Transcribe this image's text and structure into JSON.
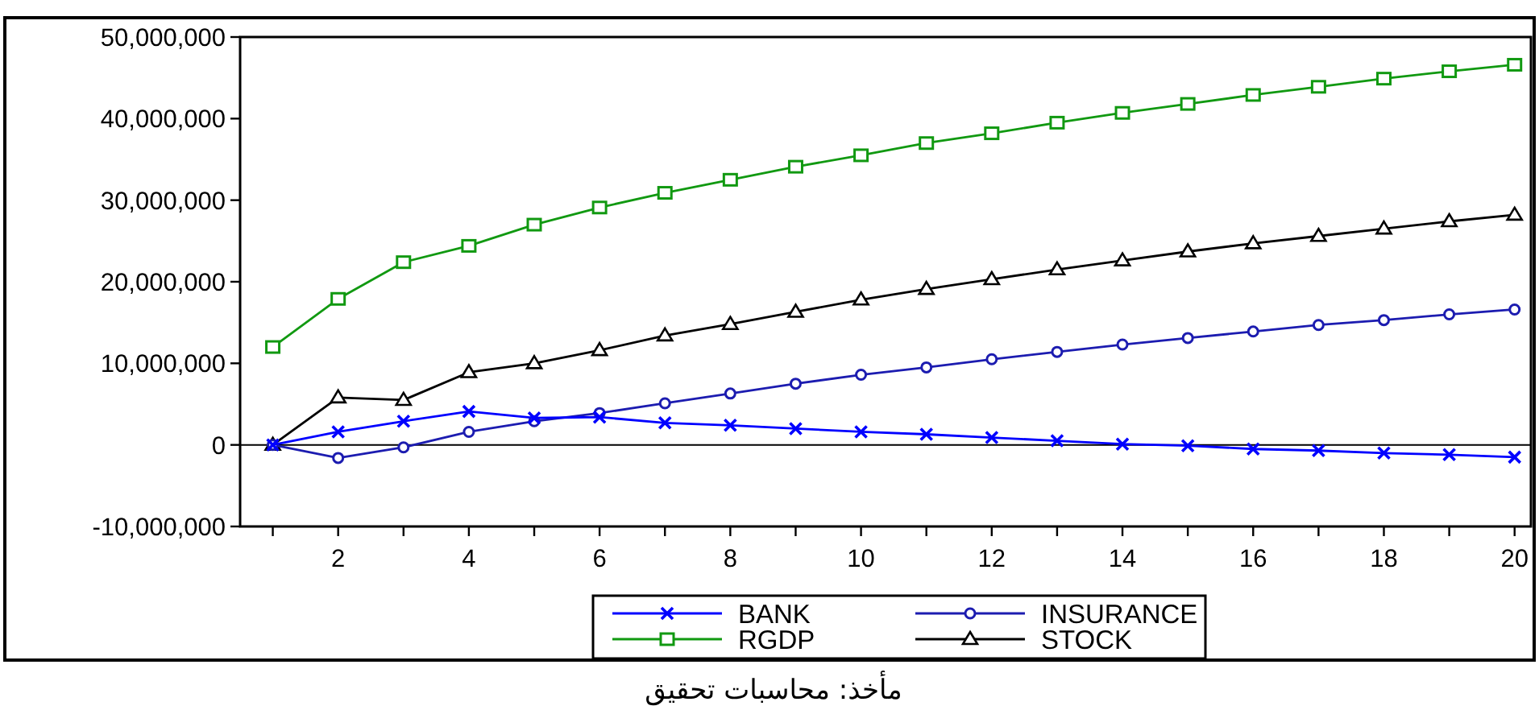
{
  "chart_data": {
    "type": "line",
    "x": [
      1,
      2,
      3,
      4,
      5,
      6,
      7,
      8,
      9,
      10,
      11,
      12,
      13,
      14,
      15,
      16,
      17,
      18,
      19,
      20
    ],
    "series": [
      {
        "name": "BANK",
        "color": "#0000ff",
        "marker": "cross",
        "values": [
          0,
          1600000,
          2900000,
          4100000,
          3300000,
          3400000,
          2700000,
          2400000,
          2000000,
          1600000,
          1300000,
          900000,
          500000,
          100000,
          -100000,
          -500000,
          -700000,
          -1000000,
          -1200000,
          -1500000
        ]
      },
      {
        "name": "INSURANCE",
        "color": "#1c1cb0",
        "marker": "circle",
        "values": [
          0,
          -1600000,
          -300000,
          1600000,
          2900000,
          3900000,
          5100000,
          6300000,
          7500000,
          8600000,
          9500000,
          10500000,
          11400000,
          12300000,
          13100000,
          13900000,
          14700000,
          15300000,
          16000000,
          16600000
        ]
      },
      {
        "name": "RGDP",
        "color": "#119911",
        "marker": "square",
        "values": [
          12000000,
          17900000,
          22400000,
          24400000,
          27000000,
          29100000,
          30900000,
          32500000,
          34100000,
          35500000,
          37000000,
          38200000,
          39500000,
          40700000,
          41800000,
          42900000,
          43900000,
          44900000,
          45800000,
          46600000
        ]
      },
      {
        "name": "STOCK",
        "color": "#000000",
        "marker": "triangle",
        "values": [
          0,
          5800000,
          5500000,
          8900000,
          10000000,
          11600000,
          13400000,
          14800000,
          16300000,
          17800000,
          19100000,
          20300000,
          21500000,
          22600000,
          23700000,
          24700000,
          25600000,
          26500000,
          27400000,
          28200000
        ]
      }
    ],
    "xlim": [
      0.5,
      20.25
    ],
    "xticks": [
      {
        "value": 1,
        "label": null
      },
      2,
      {
        "value": 3,
        "label": null
      },
      4,
      {
        "value": 5,
        "label": null
      },
      6,
      {
        "value": 7,
        "label": null
      },
      8,
      {
        "value": 9,
        "label": null
      },
      10,
      {
        "value": 11,
        "label": null
      },
      12,
      {
        "value": 13,
        "label": null
      },
      14,
      {
        "value": 15,
        "label": null
      },
      16,
      {
        "value": 17,
        "label": null
      },
      18,
      {
        "value": 19,
        "label": null
      },
      20
    ],
    "ylim": [
      -10000000,
      50000000
    ],
    "yticks": [
      {
        "value": -10000000,
        "label": "-10,000,000"
      },
      {
        "value": 0,
        "label": "0"
      },
      {
        "value": 10000000,
        "label": "10,000,000"
      },
      {
        "value": 20000000,
        "label": "20,000,000"
      },
      {
        "value": 30000000,
        "label": "30,000,000"
      },
      {
        "value": 40000000,
        "label": "40,000,000"
      },
      {
        "value": 50000000,
        "label": "50,000,000"
      }
    ],
    "ref_lines": [
      {
        "axis": "y",
        "value": 0,
        "color": "#000000"
      }
    ],
    "grid": false,
    "legend": "bottom",
    "annotations": [
      "مأخذ: محاسبات تحقیق"
    ]
  }
}
